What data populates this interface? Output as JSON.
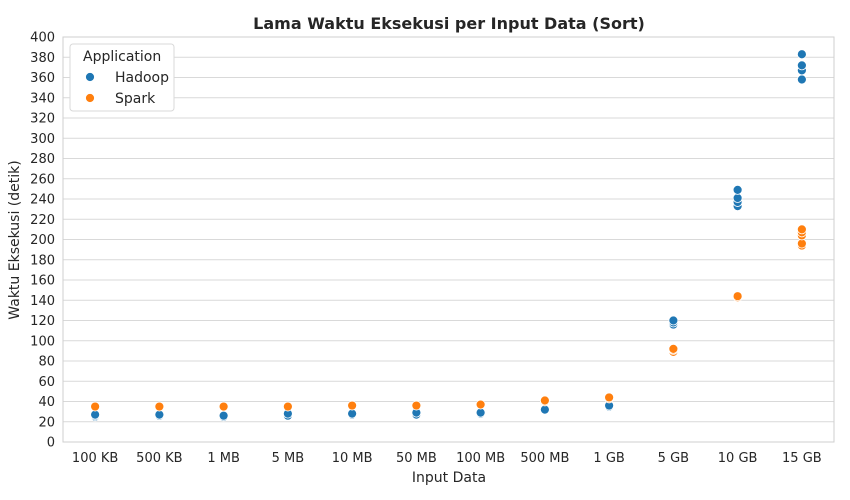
{
  "chart_data": {
    "type": "scatter",
    "title": "Lama Waktu Eksekusi per Input Data (Sort)",
    "xlabel": "Input Data",
    "ylabel": "Waktu Eksekusi (detik)",
    "categories": [
      "100 KB",
      "500 KB",
      "1 MB",
      "5 MB",
      "10 MB",
      "50 MB",
      "100 MB",
      "500 MB",
      "1 GB",
      "5 GB",
      "10 GB",
      "15 GB"
    ],
    "ylim": [
      0,
      400
    ],
    "yticks": [
      0,
      20,
      40,
      60,
      80,
      100,
      120,
      140,
      160,
      180,
      200,
      220,
      240,
      260,
      280,
      300,
      320,
      340,
      360,
      380,
      400
    ],
    "grid": true,
    "legend": {
      "title": "Application",
      "placement": "top-left"
    },
    "series": [
      {
        "name": "Hadoop",
        "color": "#1f77b4",
        "points": [
          [
            "100 KB",
            25
          ],
          [
            "100 KB",
            26
          ],
          [
            "100 KB",
            27
          ],
          [
            "500 KB",
            26
          ],
          [
            "500 KB",
            27
          ],
          [
            "1 MB",
            25
          ],
          [
            "1 MB",
            26
          ],
          [
            "5 MB",
            26
          ],
          [
            "5 MB",
            28
          ],
          [
            "10 MB",
            27
          ],
          [
            "10 MB",
            28
          ],
          [
            "50 MB",
            27
          ],
          [
            "50 MB",
            29
          ],
          [
            "100 MB",
            28
          ],
          [
            "100 MB",
            29
          ],
          [
            "500 MB",
            32
          ],
          [
            "1 GB",
            35
          ],
          [
            "1 GB",
            36
          ],
          [
            "5 GB",
            116
          ],
          [
            "5 GB",
            118
          ],
          [
            "5 GB",
            120
          ],
          [
            "10 GB",
            233
          ],
          [
            "10 GB",
            237
          ],
          [
            "10 GB",
            241
          ],
          [
            "10 GB",
            249
          ],
          [
            "15 GB",
            358
          ],
          [
            "15 GB",
            367
          ],
          [
            "15 GB",
            372
          ],
          [
            "15 GB",
            383
          ]
        ]
      },
      {
        "name": "Spark",
        "color": "#ff7f0e",
        "points": [
          [
            "100 KB",
            35
          ],
          [
            "500 KB",
            35
          ],
          [
            "1 MB",
            35
          ],
          [
            "5 MB",
            35
          ],
          [
            "10 MB",
            36
          ],
          [
            "50 MB",
            36
          ],
          [
            "100 MB",
            37
          ],
          [
            "500 MB",
            40
          ],
          [
            "500 MB",
            41
          ],
          [
            "1 GB",
            43
          ],
          [
            "1 GB",
            44
          ],
          [
            "5 GB",
            89
          ],
          [
            "5 GB",
            91
          ],
          [
            "5 GB",
            92
          ],
          [
            "10 GB",
            143
          ],
          [
            "10 GB",
            144
          ],
          [
            "15 GB",
            194
          ],
          [
            "15 GB",
            196
          ],
          [
            "15 GB",
            204
          ],
          [
            "15 GB",
            207
          ],
          [
            "15 GB",
            210
          ]
        ]
      }
    ]
  }
}
